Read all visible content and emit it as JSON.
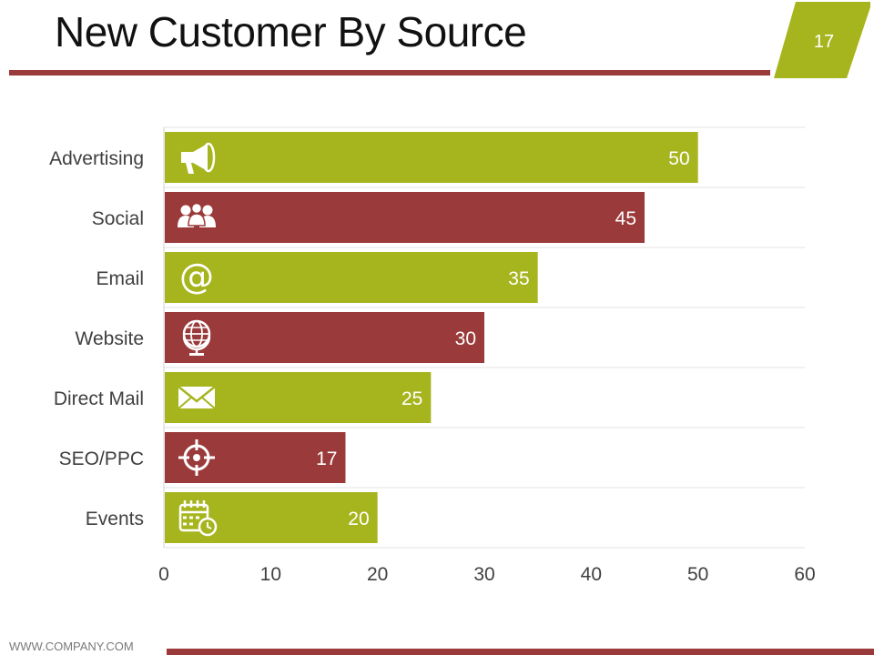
{
  "slide": {
    "title": "New Customer By Source",
    "page_number": "17",
    "footer": "WWW.COMPANY.COM"
  },
  "colors": {
    "green": "#a6b51e",
    "red": "#9b3a3a",
    "grid": "#e3e3e3",
    "label": "#404040"
  },
  "chart_data": {
    "type": "bar",
    "orientation": "horizontal",
    "title": "New Customer By Source",
    "categories": [
      "Advertising",
      "Social",
      "Email",
      "Website",
      "Direct Mail",
      "SEO/PPC",
      "Events"
    ],
    "values": [
      50,
      45,
      35,
      30,
      25,
      17,
      20
    ],
    "icons": [
      "megaphone-icon",
      "users-icon",
      "at-sign-icon",
      "globe-icon",
      "envelope-icon",
      "target-icon",
      "calendar-clock-icon"
    ],
    "bar_colors": [
      "green",
      "red",
      "green",
      "red",
      "green",
      "red",
      "green"
    ],
    "xlim": [
      0,
      60
    ],
    "xticks": [
      0,
      10,
      20,
      30,
      40,
      50,
      60
    ],
    "grid": true,
    "legend": "none"
  }
}
